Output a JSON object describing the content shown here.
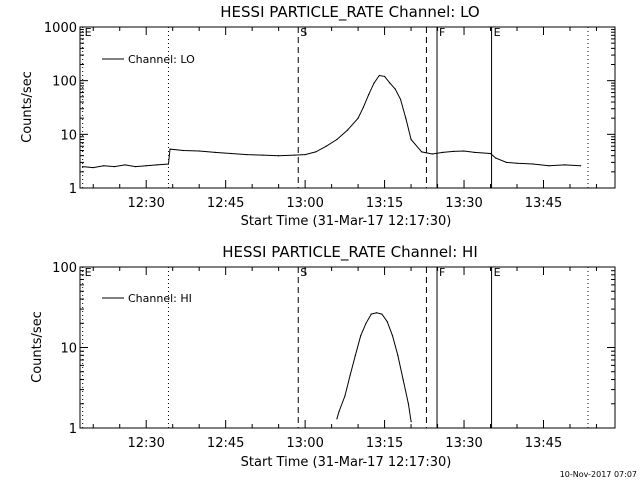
{
  "timestamp": "10-Nov-2017 07:07",
  "chart_data": [
    {
      "type": "line",
      "title": "HESSI PARTICLE_RATE Channel: LO",
      "xlabel": "Start Time (31-Mar-17 12:17:30)",
      "ylabel": "Counts/sec",
      "x_tick_labels": [
        "12:30",
        "12:45",
        "13:00",
        "13:15",
        "13:30",
        "13:45"
      ],
      "x_tick_minutes": [
        30,
        45,
        60,
        75,
        90,
        105
      ],
      "xlim_minutes": [
        17.5,
        118.5
      ],
      "x_unit": "minutes after 12:00",
      "ylim": [
        1,
        1000
      ],
      "y_scale": "log",
      "y_tick_labels": [
        "1",
        "10",
        "100",
        "1000"
      ],
      "y_tick_values": [
        1,
        10,
        100,
        1000
      ],
      "legend": {
        "label": "Channel: LO",
        "position": "top-left"
      },
      "markers": [
        {
          "minute": 18.0,
          "label": "E",
          "style": "dotted"
        },
        {
          "minute": 34.2,
          "label": "",
          "style": "dotted"
        },
        {
          "minute": 58.7,
          "label": "S",
          "style": "dashed"
        },
        {
          "minute": 82.9,
          "label": "",
          "style": "dashed"
        },
        {
          "minute": 84.9,
          "label": "F",
          "style": "solid"
        },
        {
          "minute": 95.2,
          "label": "E",
          "style": "solid"
        },
        {
          "minute": 113.4,
          "label": "",
          "style": "dotted"
        }
      ],
      "series": [
        {
          "x": [
            18.0,
            20.0,
            22.0,
            24.0,
            26.0,
            28.0,
            30.0,
            32.0,
            34.2,
            34.5,
            37.0,
            40.0,
            43.0,
            46.0,
            49.0,
            52.0,
            55.0,
            58.0,
            60.0,
            62.0,
            64.0,
            66.0,
            68.0,
            70.0,
            71.0,
            72.0,
            73.0,
            74.0,
            75.0,
            76.0,
            77.0,
            78.0,
            79.0,
            80.0,
            82.0,
            84.0,
            86.0,
            88.0,
            90.0,
            92.0,
            95.0,
            96.0,
            98.0,
            100.0,
            103.0,
            106.0,
            109.0,
            112.0
          ],
          "y": [
            2.5,
            2.4,
            2.6,
            2.5,
            2.7,
            2.5,
            2.6,
            2.7,
            2.8,
            5.3,
            5.0,
            4.9,
            4.6,
            4.4,
            4.2,
            4.1,
            4.0,
            4.1,
            4.2,
            4.7,
            6.0,
            8.0,
            12.0,
            20.0,
            32.0,
            55.0,
            90.0,
            125.0,
            120.0,
            90.0,
            70.0,
            45.0,
            20.0,
            8.0,
            4.7,
            4.3,
            4.6,
            4.8,
            4.9,
            4.6,
            4.4,
            3.6,
            3.0,
            2.9,
            2.8,
            2.6,
            2.7,
            2.6
          ]
        }
      ]
    },
    {
      "type": "line",
      "title": "HESSI PARTICLE_RATE Channel: HI",
      "xlabel": "Start Time (31-Mar-17 12:17:30)",
      "ylabel": "Counts/sec",
      "x_tick_labels": [
        "12:30",
        "12:45",
        "13:00",
        "13:15",
        "13:30",
        "13:45"
      ],
      "x_tick_minutes": [
        30,
        45,
        60,
        75,
        90,
        105
      ],
      "xlim_minutes": [
        17.5,
        118.5
      ],
      "x_unit": "minutes after 12:00",
      "ylim": [
        1,
        100
      ],
      "y_scale": "log",
      "y_tick_labels": [
        "1",
        "10",
        "100"
      ],
      "y_tick_values": [
        1,
        10,
        100
      ],
      "legend": {
        "label": "Channel: HI",
        "position": "top-left"
      },
      "markers": [
        {
          "minute": 18.0,
          "label": "E",
          "style": "dotted"
        },
        {
          "minute": 34.2,
          "label": "",
          "style": "dotted"
        },
        {
          "minute": 58.7,
          "label": "S",
          "style": "dashed"
        },
        {
          "minute": 82.9,
          "label": "",
          "style": "dashed"
        },
        {
          "minute": 84.9,
          "label": "F",
          "style": "solid"
        },
        {
          "minute": 95.2,
          "label": "E",
          "style": "solid"
        },
        {
          "minute": 113.4,
          "label": "",
          "style": "dotted"
        }
      ],
      "series": [
        {
          "x": [
            66.0,
            66.4,
            67.5,
            68.5,
            69.5,
            70.5,
            71.5,
            72.5,
            73.5,
            74.5,
            75.5,
            76.5,
            77.5,
            78.5,
            79.5,
            80.0
          ],
          "y": [
            1.3,
            1.6,
            2.5,
            4.5,
            8.0,
            14.0,
            20.0,
            26.0,
            27.0,
            26.0,
            21.0,
            14.0,
            8.0,
            4.0,
            2.0,
            1.2
          ]
        }
      ]
    }
  ]
}
